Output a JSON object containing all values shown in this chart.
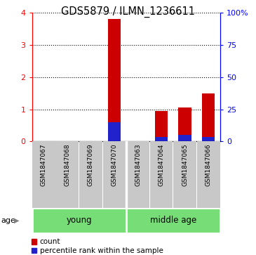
{
  "title": "GDS5879 / ILMN_1236611",
  "samples": [
    "GSM1847067",
    "GSM1847068",
    "GSM1847069",
    "GSM1847070",
    "GSM1847063",
    "GSM1847064",
    "GSM1847065",
    "GSM1847066"
  ],
  "count_values": [
    0,
    0,
    0,
    3.8,
    0,
    0.95,
    1.05,
    1.5
  ],
  "percentile_values": [
    0,
    0,
    0,
    0.6,
    0,
    0.15,
    0.2,
    0.15
  ],
  "groups": [
    {
      "label": "young",
      "start": 0,
      "end": 4,
      "color": "#77dd77"
    },
    {
      "label": "middle age",
      "start": 4,
      "end": 8,
      "color": "#77dd77"
    }
  ],
  "group_boundary": 4,
  "ylim_left": [
    0,
    4
  ],
  "ylim_right": [
    0,
    100
  ],
  "yticks_left": [
    0,
    1,
    2,
    3,
    4
  ],
  "yticks_right": [
    0,
    25,
    50,
    75,
    100
  ],
  "ytick_labels_right": [
    "0",
    "25",
    "50",
    "75",
    "100%"
  ],
  "bar_color_red": "#cc0000",
  "bar_color_blue": "#2222cc",
  "bar_width": 0.55,
  "background_samples": "#c8c8c8",
  "legend_count_label": "count",
  "legend_percentile_label": "percentile rank within the sample",
  "age_label": "age",
  "title_fontsize": 10.5,
  "tick_fontsize": 8,
  "sample_fontsize": 6.5,
  "group_fontsize": 8.5,
  "legend_fontsize": 7.5,
  "age_fontsize": 8
}
